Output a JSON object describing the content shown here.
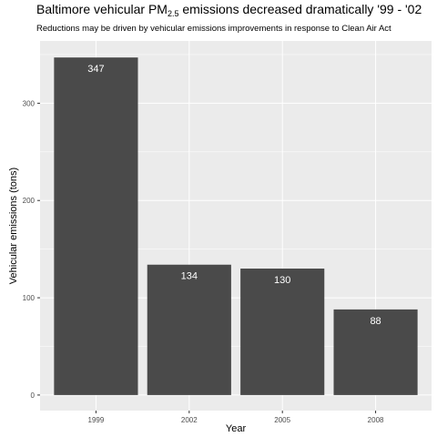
{
  "chart_data": {
    "type": "bar",
    "title": {
      "pre": "Baltimore vehicular PM",
      "sub": "2.5",
      "post": " emissions decreased dramatically '99 - '02"
    },
    "subtitle": "Reductions may be driven by vehicular emissions improvements in response to Clean Air Act",
    "xlabel": "Year",
    "ylabel": "Vehicular emissions (tons)",
    "categories": [
      "1999",
      "2002",
      "2005",
      "2008"
    ],
    "values": [
      347,
      134,
      130,
      88
    ],
    "data_labels": [
      "347",
      "134",
      "130",
      "88"
    ],
    "ylim": [
      -16,
      364
    ],
    "yticks": [
      0,
      100,
      200,
      300
    ],
    "grid": true,
    "legend": "none",
    "colors": {
      "panel_background": "#ebebeb",
      "grid_major": "#ffffff",
      "bar_fill": "#4a4a4a",
      "bar_label": "#ffffff",
      "tick_label": "#4d4d4d"
    }
  }
}
